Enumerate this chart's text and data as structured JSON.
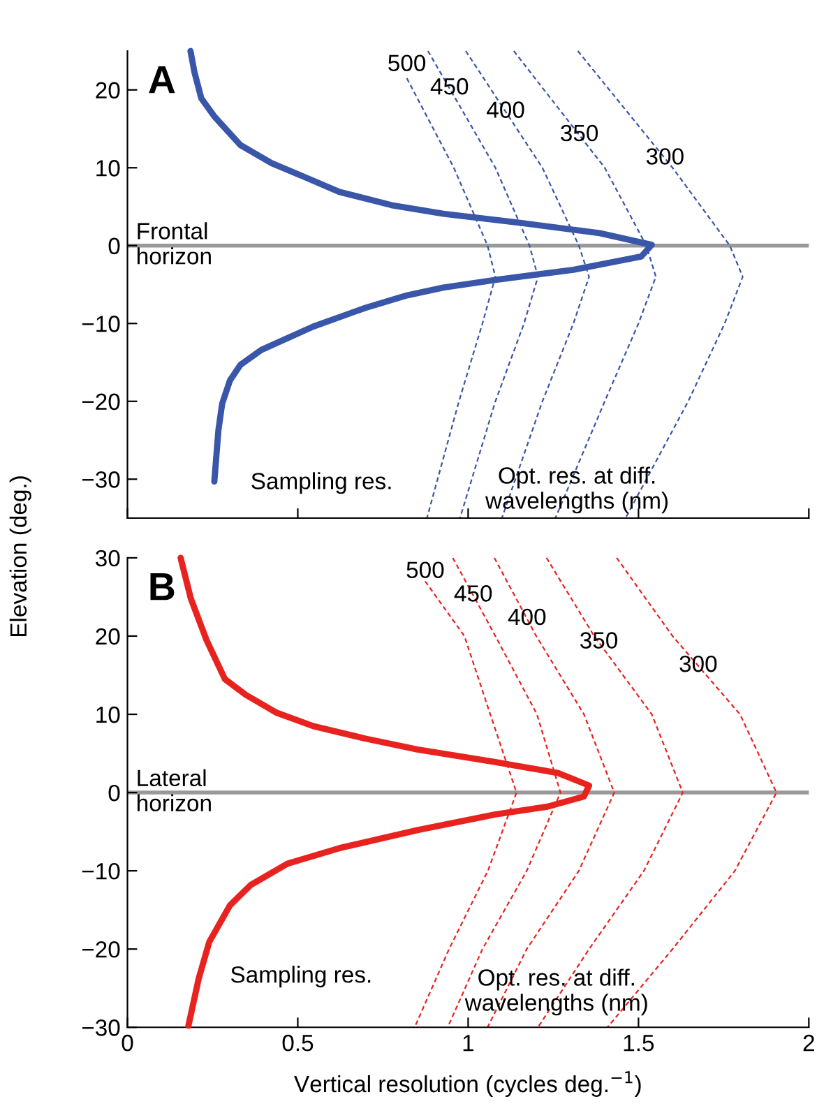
{
  "chart_data": [
    {
      "type": "line",
      "title": "A",
      "ylabel": "Elevation (deg.)",
      "xlim": [
        0,
        2
      ],
      "ylim": [
        -35,
        25
      ],
      "xticks": [
        {
          "value": 0,
          "label": null
        },
        {
          "value": 0.5,
          "label": null
        },
        {
          "value": 1,
          "label": null
        },
        {
          "value": 1.5,
          "label": null
        },
        {
          "value": 2,
          "label": null
        }
      ],
      "yticks": [
        -30,
        -20,
        -10,
        0,
        10,
        20
      ],
      "tick_labels": "y",
      "grid": false,
      "ref_lines": [
        {
          "axis": "y",
          "value": 0,
          "label": "Frontal\nhorizon",
          "color": "#999999"
        }
      ],
      "series": [
        {
          "color": "#3a56a8",
          "line_style": "solid",
          "x": [
            0.185,
            0.197,
            0.217,
            0.255,
            0.332,
            0.423,
            0.515,
            0.622,
            0.775,
            0.927,
            1.157,
            1.386,
            1.539,
            1.508,
            1.309,
            1.08,
            0.927,
            0.82,
            0.698,
            0.545,
            0.393,
            0.332,
            0.301,
            0.278,
            0.267,
            0.255
          ],
          "values": [
            25,
            22.2,
            18.9,
            16.6,
            12.9,
            10.6,
            8.9,
            6.9,
            5.2,
            4.1,
            2.9,
            1.6,
            0.1,
            -1.4,
            -3.1,
            -4.4,
            -5.4,
            -6.4,
            -8.0,
            -10.4,
            -13.4,
            -15.3,
            -17.3,
            -20.3,
            -23.7,
            -30.3
          ]
        },
        {
          "name": "500",
          "color": "#3a56a8",
          "line_style": "dashed",
          "x": [
            0.82,
            0.958,
            1.057,
            1.08,
            1.042,
            0.973,
            0.879
          ],
          "values": [
            21.5,
            10,
            0,
            -4,
            -10,
            -20,
            -35
          ]
        },
        {
          "name": "450",
          "color": "#3a56a8",
          "line_style": "dashed",
          "x": [
            0.882,
            1.08,
            1.18,
            1.205,
            1.164,
            1.08,
            0.976
          ],
          "values": [
            25,
            10,
            0,
            -4,
            -10,
            -20,
            -35
          ]
        },
        {
          "name": "400",
          "color": "#3a56a8",
          "line_style": "dashed",
          "x": [
            0.993,
            1.218,
            1.325,
            1.355,
            1.309,
            1.218,
            1.099
          ],
          "values": [
            25,
            10,
            0,
            -4,
            -10,
            -20,
            -35
          ]
        },
        {
          "name": "350",
          "color": "#3a56a8",
          "line_style": "dashed",
          "x": [
            1.134,
            1.401,
            1.523,
            1.551,
            1.5,
            1.401,
            1.256
          ],
          "values": [
            25,
            10,
            0,
            -4,
            -10,
            -20,
            -35
          ]
        },
        {
          "name": "300",
          "color": "#3a56a8",
          "line_style": "dashed",
          "x": [
            1.322,
            1.6,
            1.768,
            1.806,
            1.753,
            1.646,
            1.462
          ],
          "values": [
            25,
            10,
            0,
            -4,
            -10,
            -20,
            -35
          ]
        }
      ],
      "annotations": [
        "Sampling res.",
        "Opt. res. at diff.\nwavelengths (nm)"
      ]
    },
    {
      "type": "line",
      "title": "B",
      "xlabel": "Vertical resolution (cycles deg.$^{−1}$)",
      "xlim": [
        0,
        2
      ],
      "ylim": [
        -30,
        30
      ],
      "xticks": [
        0,
        0.5,
        1,
        1.5,
        2
      ],
      "yticks": [
        -30,
        -20,
        -10,
        0,
        10,
        20,
        30
      ],
      "grid": false,
      "ref_lines": [
        {
          "axis": "y",
          "value": 0,
          "label": "Lateral\nhorizon",
          "color": "#999999"
        }
      ],
      "series": [
        {
          "color": "#e8231f",
          "line_style": "solid",
          "x": [
            0.156,
            0.186,
            0.232,
            0.286,
            0.347,
            0.438,
            0.545,
            0.698,
            0.851,
            1.08,
            1.264,
            1.355,
            1.34,
            1.233,
            1.08,
            0.851,
            0.622,
            0.469,
            0.362,
            0.301,
            0.24,
            0.209,
            0.179
          ],
          "values": [
            30,
            24.8,
            19.5,
            14.5,
            12.5,
            10.2,
            8.5,
            6.9,
            5.5,
            3.9,
            2.5,
            0.9,
            -0.5,
            -1.8,
            -2.8,
            -4.8,
            -7.1,
            -9.1,
            -11.8,
            -14.4,
            -19.1,
            -23.8,
            -29.8
          ]
        },
        {
          "name": "500",
          "color": "#e8231f",
          "line_style": "dashed",
          "x": [
            0.874,
            0.989,
            1.065,
            1.142,
            1.058,
            0.944,
            0.843
          ],
          "values": [
            27,
            20,
            10,
            0,
            -10,
            -20,
            -30
          ]
        },
        {
          "name": "450",
          "color": "#e8231f",
          "line_style": "dashed",
          "x": [
            0.955,
            1.08,
            1.202,
            1.271,
            1.172,
            1.042,
            0.94
          ],
          "values": [
            30,
            20,
            10,
            0,
            -10,
            -20,
            -30
          ]
        },
        {
          "name": "400",
          "color": "#e8231f",
          "line_style": "dashed",
          "x": [
            1.077,
            1.2,
            1.34,
            1.429,
            1.325,
            1.172,
            1.057
          ],
          "values": [
            30,
            20,
            10,
            0,
            -10,
            -20,
            -30
          ]
        },
        {
          "name": "350",
          "color": "#e8231f",
          "line_style": "dashed",
          "x": [
            1.23,
            1.37,
            1.539,
            1.63,
            1.516,
            1.355,
            1.205
          ],
          "values": [
            30,
            20,
            10,
            0,
            -10,
            -20,
            -30
          ]
        },
        {
          "name": "300",
          "color": "#e8231f",
          "line_style": "dashed",
          "x": [
            1.436,
            1.6,
            1.798,
            1.905,
            1.783,
            1.6,
            1.409
          ],
          "values": [
            30,
            20,
            10,
            0,
            -10,
            -20,
            -30
          ]
        }
      ],
      "annotations": [
        "Sampling res.",
        "Opt. res. at diff.\nwavelengths (nm)"
      ]
    }
  ]
}
